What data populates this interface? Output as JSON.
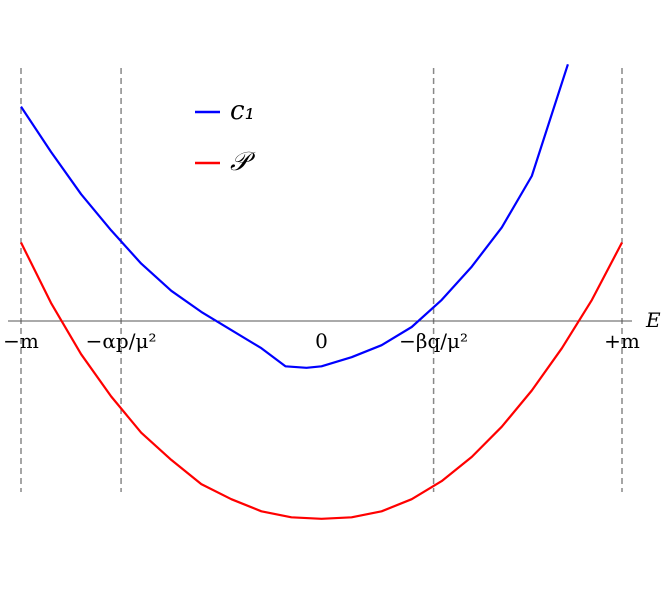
{
  "chart_data": {
    "type": "line",
    "xlabel": "E",
    "ylabel": "",
    "title": "",
    "xlim": [
      -1.0,
      1.0
    ],
    "ylim": [
      -0.65,
      0.85
    ],
    "grid": false,
    "legend_position": "top-left",
    "x_ticks": [
      {
        "x": -1.0,
        "label": "−m"
      },
      {
        "x": -0.667,
        "label": "−αp/μ²"
      },
      {
        "x": 0.0,
        "label": "0"
      },
      {
        "x": 1.0,
        "label": "+m"
      }
    ],
    "x_ticks_extra": [
      {
        "x": 0.373,
        "label": "−βq/μ²"
      }
    ],
    "reference_lines": [
      {
        "x": -1.0,
        "style": "dashed",
        "color": "#888888"
      },
      {
        "x": -0.667,
        "style": "dashed",
        "color": "#888888"
      },
      {
        "x": 0.373,
        "style": "dashed",
        "color": "#888888"
      },
      {
        "x": 1.0,
        "style": "dashed",
        "color": "#888888"
      }
    ],
    "series": [
      {
        "name": "c₁",
        "color": "#0000ff",
        "x": [
          -1.0,
          -0.9,
          -0.8,
          -0.7,
          -0.6,
          -0.5,
          -0.4,
          -0.3,
          -0.2,
          -0.12,
          -0.05,
          0.0,
          0.1,
          0.2,
          0.3,
          0.4,
          0.5,
          0.6,
          0.7,
          0.82
        ],
        "y": [
          0.71,
          0.56,
          0.42,
          0.3,
          0.19,
          0.1,
          0.03,
          -0.03,
          -0.09,
          -0.15,
          -0.155,
          -0.15,
          -0.12,
          -0.08,
          -0.02,
          0.07,
          0.18,
          0.31,
          0.48,
          0.85
        ]
      },
      {
        "name": "𝒫",
        "color": "#ff0000",
        "x": [
          -1.0,
          -0.9,
          -0.8,
          -0.7,
          -0.6,
          -0.5,
          -0.4,
          -0.3,
          -0.2,
          -0.1,
          0.0,
          0.1,
          0.2,
          0.3,
          0.4,
          0.5,
          0.6,
          0.7,
          0.8,
          0.9,
          1.0
        ],
        "y": [
          0.26,
          0.06,
          -0.11,
          -0.25,
          -0.37,
          -0.46,
          -0.54,
          -0.59,
          -0.63,
          -0.65,
          -0.655,
          -0.65,
          -0.63,
          -0.59,
          -0.53,
          -0.45,
          -0.35,
          -0.23,
          -0.09,
          0.07,
          0.26
        ]
      }
    ],
    "legend": [
      {
        "label": "c₁",
        "color": "#0000ff"
      },
      {
        "label": "𝒫",
        "color": "#ff0000"
      }
    ]
  }
}
